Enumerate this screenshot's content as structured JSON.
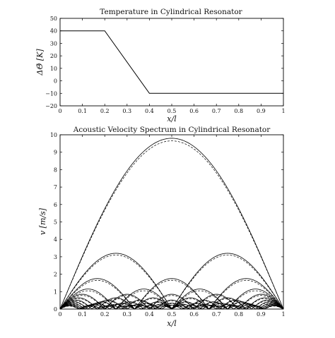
{
  "chart_data": [
    {
      "type": "line",
      "title": "Temperature in Cylindrical Resonator",
      "xlabel": "x/l",
      "ylabel": "ΔΘ̄ [K]",
      "xlim": [
        0,
        1
      ],
      "ylim": [
        -20,
        50
      ],
      "xticks": [
        0,
        0.1,
        0.2,
        0.3,
        0.4,
        0.5,
        0.6,
        0.7,
        0.8,
        0.9,
        1
      ],
      "xtick_labels": [
        "0",
        "0.1",
        "0.2",
        "0.3",
        "0.4",
        "0.5",
        "0.6",
        "0.7",
        "0.8",
        "0.9",
        "1"
      ],
      "yticks": [
        -20,
        -10,
        0,
        10,
        20,
        30,
        40,
        50
      ],
      "ytick_labels": [
        "−20",
        "−10",
        "0",
        "10",
        "20",
        "30",
        "40",
        "50"
      ],
      "grid": false,
      "series": [
        {
          "x": [
            0,
            0.2,
            0.4,
            1
          ],
          "y": [
            40,
            40,
            -10,
            -10
          ],
          "style": "solid",
          "color": "#000000"
        }
      ]
    },
    {
      "type": "line",
      "title": "Acoustic Velocity Spectrum in Cylindrical Resonator",
      "xlabel": "x/l",
      "ylabel": "v [m/s]",
      "xlim": [
        0,
        1
      ],
      "ylim": [
        0,
        10
      ],
      "xticks": [
        0,
        0.1,
        0.2,
        0.3,
        0.4,
        0.5,
        0.6,
        0.7,
        0.8,
        0.9,
        1
      ],
      "xtick_labels": [
        "0",
        "0.1",
        "0.2",
        "0.3",
        "0.4",
        "0.5",
        "0.6",
        "0.7",
        "0.8",
        "0.9",
        "1"
      ],
      "yticks": [
        0,
        1,
        2,
        3,
        4,
        5,
        6,
        7,
        8,
        9,
        10
      ],
      "ytick_labels": [
        "0",
        "1",
        "2",
        "3",
        "4",
        "5",
        "6",
        "7",
        "8",
        "9",
        "10"
      ],
      "grid": false,
      "legend": "none",
      "curve_description": "Family of rectified sine modes |A_n sin(n·pi·x/l)|; solid = one computation, dashed = comparison",
      "modes": [
        {
          "n": 1,
          "solid_amplitude": 9.8,
          "dashed_amplitude": 9.65
        },
        {
          "n": 2,
          "solid_amplitude": 3.2,
          "dashed_amplitude": 3.1
        },
        {
          "n": 3,
          "solid_amplitude": 1.75,
          "dashed_amplitude": 1.65
        },
        {
          "n": 4,
          "solid_amplitude": 1.15,
          "dashed_amplitude": 1.05
        },
        {
          "n": 5,
          "solid_amplitude": 0.85,
          "dashed_amplitude": 0.78
        },
        {
          "n": 6,
          "solid_amplitude": 0.65,
          "dashed_amplitude": 0.6
        },
        {
          "n": 7,
          "solid_amplitude": 0.52,
          "dashed_amplitude": 0.47
        },
        {
          "n": 8,
          "solid_amplitude": 0.42,
          "dashed_amplitude": 0.38
        },
        {
          "n": 9,
          "solid_amplitude": 0.34,
          "dashed_amplitude": 0.3
        },
        {
          "n": 10,
          "solid_amplitude": 0.28,
          "dashed_amplitude": 0.25
        },
        {
          "n": 11,
          "solid_amplitude": 0.23,
          "dashed_amplitude": 0.2
        },
        {
          "n": 12,
          "solid_amplitude": 0.19,
          "dashed_amplitude": 0.17
        }
      ]
    }
  ]
}
